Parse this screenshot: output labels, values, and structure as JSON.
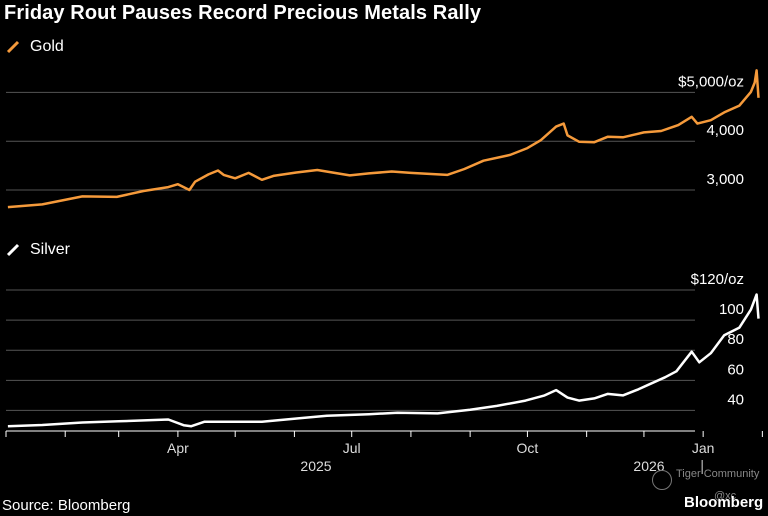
{
  "title": "Friday Rout Pauses Record Precious Metals Rally",
  "source": "Source: Bloomberg",
  "brand": "Bloomberg",
  "watermark": {
    "community": "Tiger Community",
    "handle": "@xc"
  },
  "colors": {
    "gold": "#f59a3b",
    "silver": "#ffffff",
    "grid": "#555555",
    "background": "#000000"
  },
  "x_axis": {
    "month_labels": [
      "Apr",
      "Jul",
      "Oct",
      "Jan"
    ],
    "year_labels": [
      "2025",
      "2026"
    ]
  },
  "chart_data": [
    {
      "type": "line",
      "series": [
        {
          "name": "Gold",
          "unit": "$/oz"
        }
      ],
      "x": [
        "2025-01-02",
        "2025-01-20",
        "2025-02-10",
        "2025-02-28",
        "2025-03-14",
        "2025-03-27",
        "2025-04-01",
        "2025-04-07",
        "2025-04-10",
        "2025-04-17",
        "2025-04-22",
        "2025-04-25",
        "2025-05-01",
        "2025-05-08",
        "2025-05-15",
        "2025-05-21",
        "2025-06-02",
        "2025-06-13",
        "2025-06-30",
        "2025-07-10",
        "2025-07-22",
        "2025-08-01",
        "2025-08-20",
        "2025-08-29",
        "2025-09-08",
        "2025-09-22",
        "2025-10-01",
        "2025-10-08",
        "2025-10-16",
        "2025-10-20",
        "2025-10-22",
        "2025-10-28",
        "2025-11-05",
        "2025-11-12",
        "2025-11-20",
        "2025-12-01",
        "2025-12-10",
        "2025-12-19",
        "2025-12-26",
        "2025-12-29",
        "2026-01-05",
        "2026-01-12",
        "2026-01-20",
        "2026-01-26",
        "2026-01-28",
        "2026-01-29",
        "2026-01-30"
      ],
      "values": [
        2650,
        2705,
        2870,
        2860,
        2980,
        3060,
        3120,
        3000,
        3170,
        3320,
        3400,
        3310,
        3240,
        3350,
        3210,
        3290,
        3360,
        3410,
        3300,
        3340,
        3380,
        3350,
        3310,
        3430,
        3600,
        3720,
        3860,
        4020,
        4300,
        4360,
        4120,
        3990,
        3980,
        4090,
        4080,
        4180,
        4210,
        4330,
        4500,
        4360,
        4430,
        4590,
        4730,
        5010,
        5200,
        5450,
        4890
      ],
      "yticks": [
        3000,
        4000,
        5000
      ],
      "ytick_labels": [
        "3,000",
        "4,000",
        "$5,000/oz"
      ],
      "ylim": [
        2550,
        5500
      ],
      "xlim": [
        "2025-01-01",
        "2026-02-05"
      ]
    },
    {
      "type": "line",
      "series": [
        {
          "name": "Silver",
          "unit": "$/oz"
        }
      ],
      "x": [
        "2025-01-02",
        "2025-01-20",
        "2025-02-10",
        "2025-03-01",
        "2025-03-27",
        "2025-04-04",
        "2025-04-08",
        "2025-04-15",
        "2025-05-15",
        "2025-06-05",
        "2025-06-18",
        "2025-07-10",
        "2025-07-25",
        "2025-08-15",
        "2025-09-01",
        "2025-09-15",
        "2025-09-30",
        "2025-10-10",
        "2025-10-16",
        "2025-10-22",
        "2025-10-28",
        "2025-11-05",
        "2025-11-12",
        "2025-11-20",
        "2025-11-28",
        "2025-12-05",
        "2025-12-12",
        "2025-12-18",
        "2025-12-26",
        "2025-12-30",
        "2026-01-05",
        "2026-01-12",
        "2026-01-20",
        "2026-01-26",
        "2026-01-29",
        "2026-01-30"
      ],
      "values": [
        29.5,
        30.3,
        32.0,
        32.8,
        34.0,
        30.2,
        29.5,
        32.5,
        32.5,
        35.0,
        36.5,
        37.5,
        38.5,
        38.0,
        40.5,
        43.0,
        46.5,
        50.0,
        53.5,
        48.5,
        46.5,
        48.0,
        51.0,
        50.0,
        54.0,
        58.0,
        62.0,
        66.0,
        79.0,
        72.0,
        78.0,
        90.0,
        95.0,
        107.0,
        117.0,
        101.0
      ],
      "yticks": [
        40,
        60,
        80,
        100,
        120
      ],
      "ytick_labels": [
        "40",
        "60",
        "80",
        "100",
        "$120/oz"
      ],
      "ylim": [
        27,
        120
      ],
      "xlim": [
        "2025-01-01",
        "2026-02-05"
      ]
    }
  ]
}
